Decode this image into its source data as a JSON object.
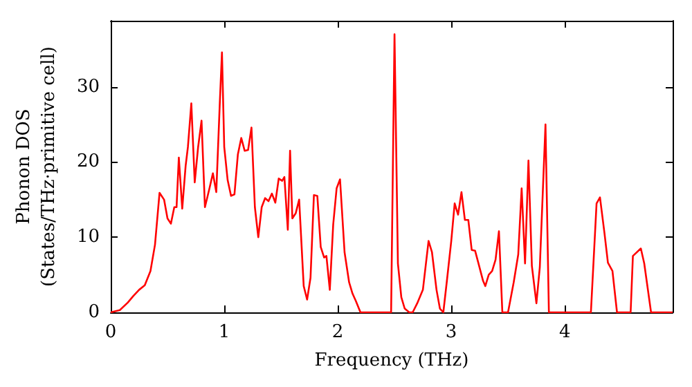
{
  "chart_data": {
    "type": "line",
    "xlabel": "Frequency (THz)",
    "ylabel": "Phonon DOS\n(States/THz·primitive cell)",
    "xlim": [
      0,
      4.95
    ],
    "xticks": [
      0,
      1,
      2,
      3,
      4
    ],
    "ylim": [
      0,
      38.8
    ],
    "yticks": [
      0,
      10,
      20,
      30
    ],
    "grid": false,
    "marker": "none",
    "line_style": "solid",
    "series": [
      {
        "color": "#ff0000",
        "x": [
          0,
          0.08,
          0.15,
          0.2,
          0.25,
          0.3,
          0.35,
          0.39,
          0.43,
          0.47,
          0.5,
          0.53,
          0.56,
          0.58,
          0.6,
          0.63,
          0.66,
          0.68,
          0.71,
          0.74,
          0.77,
          0.8,
          0.83,
          0.87,
          0.9,
          0.93,
          0.96,
          0.98,
          1.0,
          1.03,
          1.06,
          1.09,
          1.12,
          1.15,
          1.18,
          1.21,
          1.24,
          1.27,
          1.3,
          1.33,
          1.36,
          1.39,
          1.42,
          1.45,
          1.48,
          1.51,
          1.53,
          1.56,
          1.58,
          1.6,
          1.63,
          1.66,
          1.7,
          1.73,
          1.76,
          1.79,
          1.82,
          1.85,
          1.88,
          1.9,
          1.93,
          1.96,
          1.99,
          2.02,
          2.06,
          2.1,
          2.13,
          2.16,
          2.2,
          2.47,
          2.5,
          2.53,
          2.56,
          2.59,
          2.63,
          2.66,
          2.7,
          2.75,
          2.8,
          2.83,
          2.87,
          2.9,
          2.93,
          2.96,
          3.0,
          3.03,
          3.06,
          3.09,
          3.12,
          3.15,
          3.18,
          3.21,
          3.24,
          3.28,
          3.3,
          3.33,
          3.36,
          3.39,
          3.42,
          3.45,
          3.5,
          3.55,
          3.59,
          3.62,
          3.65,
          3.68,
          3.71,
          3.75,
          3.78,
          3.83,
          3.86,
          4.23,
          4.28,
          4.31,
          4.35,
          4.38,
          4.42,
          4.46,
          4.58,
          4.6,
          4.67,
          4.7,
          4.76,
          4.95
        ],
        "values": [
          0,
          0.3,
          1.3,
          2.2,
          3.0,
          3.6,
          5.5,
          9,
          15.9,
          15,
          12.5,
          11.8,
          14,
          14,
          20.6,
          13.8,
          19.5,
          22,
          27.8,
          17.3,
          22,
          25.5,
          14,
          16.5,
          18.5,
          16,
          27.5,
          34.6,
          22,
          17.6,
          15.5,
          15.7,
          21,
          23.2,
          21.5,
          21.6,
          24.6,
          14,
          10,
          14,
          15.2,
          14.8,
          15.8,
          14.6,
          17.8,
          17.5,
          18,
          11,
          21.5,
          12.5,
          13.2,
          15,
          3.5,
          1.7,
          4.6,
          15.6,
          15.5,
          8.7,
          7.3,
          7.5,
          3,
          11.7,
          16.5,
          17.7,
          8,
          4,
          2.5,
          1.5,
          0,
          0,
          37,
          6.5,
          2,
          0.5,
          0,
          0,
          1.2,
          3,
          9.5,
          8,
          3,
          0.5,
          0,
          4,
          9.5,
          14.5,
          13,
          16,
          12.3,
          12.3,
          8.3,
          8.2,
          6.5,
          4.2,
          3.5,
          5,
          5.5,
          7,
          10.8,
          0,
          0,
          4,
          7.7,
          16.5,
          6.5,
          20.2,
          6.2,
          1.2,
          6,
          25,
          0,
          0,
          14.5,
          15.3,
          10.5,
          6.6,
          5.5,
          0,
          0,
          7.5,
          8.5,
          6.5,
          0,
          0
        ]
      }
    ]
  }
}
